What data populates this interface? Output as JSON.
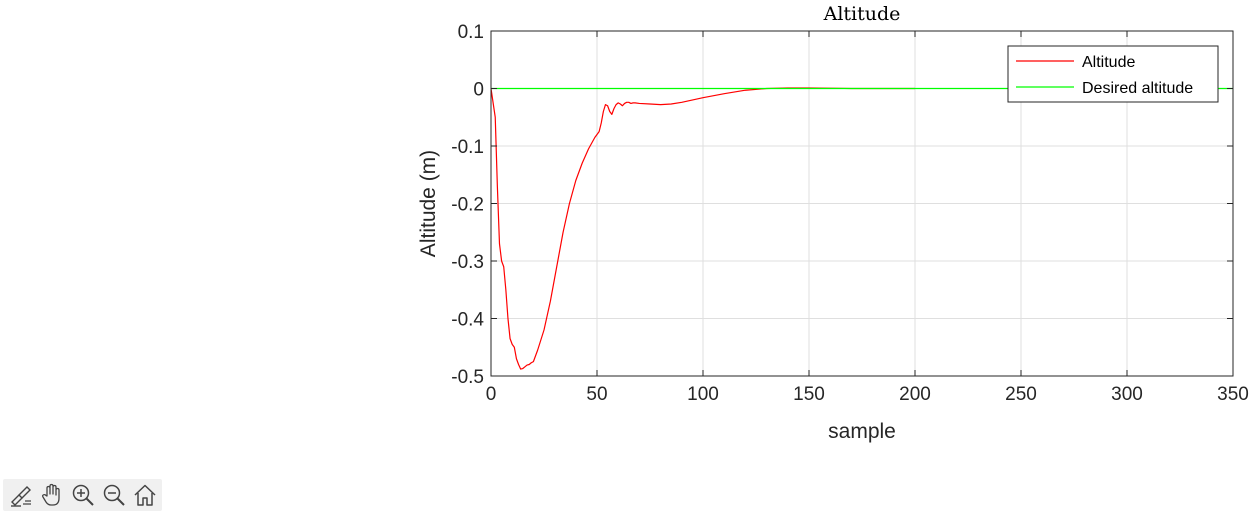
{
  "chart_data": {
    "type": "line",
    "title": "Altitude",
    "xlabel": "sample",
    "ylabel": "Altitude (m)",
    "xlim": [
      0,
      350
    ],
    "ylim": [
      -0.5,
      0.1
    ],
    "xticks": [
      0,
      50,
      100,
      150,
      200,
      250,
      300,
      350
    ],
    "yticks": [
      0.1,
      0,
      -0.1,
      -0.2,
      -0.3,
      -0.4,
      -0.5
    ],
    "xtick_labels": [
      "0",
      "50",
      "100",
      "150",
      "200",
      "250",
      "300",
      "350"
    ],
    "ytick_labels": [
      "0.1",
      "0",
      "-0.1",
      "-0.2",
      "-0.3",
      "-0.4",
      "-0.5"
    ],
    "grid": true,
    "legend_position": "top-right",
    "series": [
      {
        "name": "Altitude",
        "color": "#ff0000",
        "x": [
          0,
          2,
          3,
          4,
          5,
          6,
          7,
          8,
          9,
          10,
          11,
          12,
          13,
          14,
          15,
          16,
          17,
          18,
          19,
          20,
          22,
          25,
          28,
          31,
          34,
          37,
          40,
          43,
          46,
          49,
          51,
          52,
          53,
          54,
          55,
          56,
          57,
          58,
          59,
          60,
          61,
          62,
          63,
          64,
          65,
          66,
          67,
          68,
          70,
          75,
          80,
          85,
          90,
          100,
          110,
          120,
          130,
          140,
          150,
          160,
          170,
          180,
          200
        ],
        "y": [
          0,
          -0.05,
          -0.17,
          -0.27,
          -0.3,
          -0.31,
          -0.35,
          -0.4,
          -0.435,
          -0.445,
          -0.45,
          -0.47,
          -0.48,
          -0.488,
          -0.487,
          -0.484,
          -0.481,
          -0.48,
          -0.477,
          -0.475,
          -0.455,
          -0.42,
          -0.37,
          -0.31,
          -0.25,
          -0.2,
          -0.16,
          -0.13,
          -0.105,
          -0.085,
          -0.075,
          -0.06,
          -0.04,
          -0.028,
          -0.03,
          -0.04,
          -0.045,
          -0.035,
          -0.028,
          -0.025,
          -0.027,
          -0.03,
          -0.026,
          -0.024,
          -0.024,
          -0.026,
          -0.025,
          -0.025,
          -0.026,
          -0.027,
          -0.028,
          -0.027,
          -0.024,
          -0.016,
          -0.009,
          -0.003,
          0,
          0.001,
          0.001,
          0.0005,
          0,
          0,
          0
        ]
      },
      {
        "name": "Desired altitude",
        "color": "#00ff00",
        "x": [
          0,
          350
        ],
        "y": [
          0,
          0
        ]
      }
    ]
  },
  "toolbar": {
    "icons": [
      "brush-icon",
      "pan-icon",
      "zoom-in-icon",
      "zoom-out-icon",
      "home-icon"
    ]
  }
}
